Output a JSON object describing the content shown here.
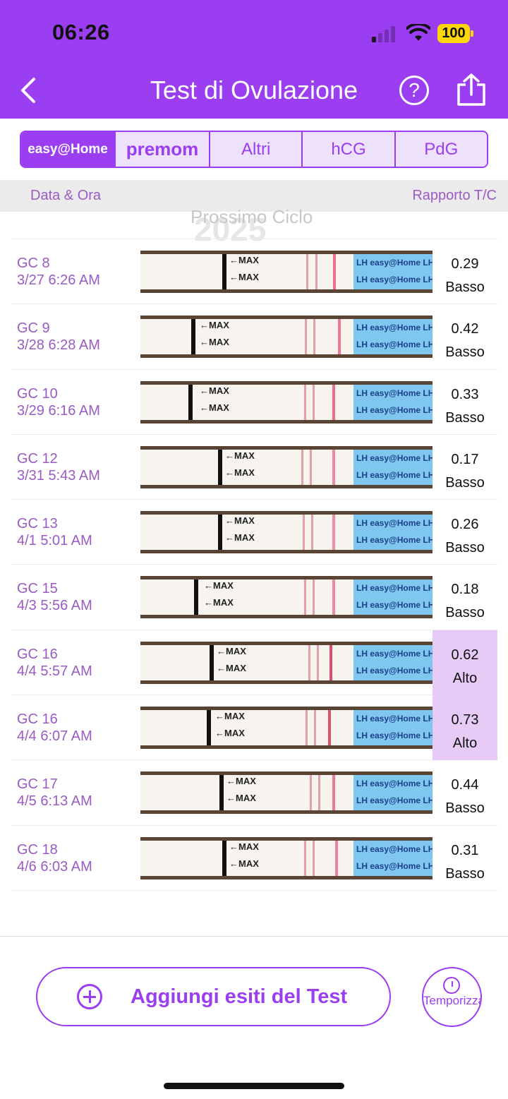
{
  "status": {
    "time": "06:26",
    "battery": "100"
  },
  "header": {
    "title": "Test di Ovulazione",
    "help": "?"
  },
  "tabs": {
    "easy": "easy@Home",
    "premom": "premom",
    "altri": "Altri",
    "hcg": "hCG",
    "pdg": "PdG"
  },
  "columns": {
    "left": "Data & Ora",
    "right": "Rapporto T/C"
  },
  "ghost": {
    "text": "Prossimo Ciclo",
    "year": "2025"
  },
  "rows": [
    {
      "day": "GC 8",
      "datetime": "3/27 6:26 AM",
      "ratio": "0.29",
      "level": "Basso"
    },
    {
      "day": "GC 9",
      "datetime": "3/28 6:28 AM",
      "ratio": "0.42",
      "level": "Basso"
    },
    {
      "day": "GC 10",
      "datetime": "3/29 6:16 AM",
      "ratio": "0.33",
      "level": "Basso"
    },
    {
      "day": "GC 12",
      "datetime": "3/31 5:43 AM",
      "ratio": "0.17",
      "level": "Basso"
    },
    {
      "day": "GC 13",
      "datetime": "4/1 5:01 AM",
      "ratio": "0.26",
      "level": "Basso"
    },
    {
      "day": "GC 15",
      "datetime": "4/3 5:56 AM",
      "ratio": "0.18",
      "level": "Basso"
    },
    {
      "day": "GC 16",
      "datetime": "4/4 5:57 AM",
      "ratio": "0.62",
      "level": "Alto"
    },
    {
      "day": "GC 16",
      "datetime": "4/4 6:07 AM",
      "ratio": "0.73",
      "level": "Alto"
    },
    {
      "day": "GC 17",
      "datetime": "4/5 6:13 AM",
      "ratio": "0.44",
      "level": "Basso"
    },
    {
      "day": "GC 18",
      "datetime": "4/6 6:03 AM",
      "ratio": "0.31",
      "level": "Basso"
    }
  ],
  "strip": {
    "max": "←MAX",
    "lh": "LH easy@Home LH"
  },
  "footer": {
    "add_button": "Aggiungi esiti del Test",
    "timer": "Temporizzatore"
  },
  "colors": {
    "accent": "#9b3ef2",
    "high_bg": "#e6cbf7",
    "text_purple": "#9a5bc4"
  }
}
